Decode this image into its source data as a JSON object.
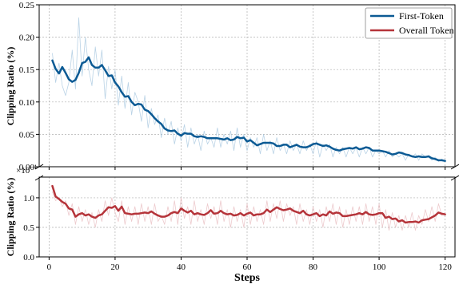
{
  "chart_data": [
    {
      "type": "line",
      "panel": "top",
      "ylabel": "Clipping Ratio (%)",
      "xlim": [
        -3,
        123
      ],
      "ylim": [
        0,
        0.25
      ],
      "yticks": [
        0.0,
        0.05,
        0.1,
        0.15,
        0.2,
        0.25
      ],
      "ytick_labels": [
        "0.00",
        "0.05",
        "0.10",
        "0.15",
        "0.20",
        "0.25"
      ],
      "grid": true,
      "legend_position": "top-right",
      "legend": [
        "First-Token",
        "Overall Token"
      ],
      "series": [
        {
          "name": "First-Token",
          "role": "smoothed",
          "color": "#0b5a94",
          "x": [
            1,
            2,
            3,
            4,
            5,
            6,
            7,
            8,
            9,
            10,
            11,
            12,
            13,
            14,
            15,
            16,
            17,
            18,
            19,
            20,
            21,
            22,
            23,
            24,
            25,
            26,
            27,
            28,
            29,
            30,
            31,
            32,
            33,
            34,
            35,
            36,
            37,
            38,
            39,
            40,
            41,
            42,
            43,
            44,
            45,
            46,
            47,
            48,
            49,
            50,
            51,
            52,
            53,
            54,
            55,
            56,
            57,
            58,
            59,
            60,
            61,
            62,
            63,
            64,
            65,
            66,
            67,
            68,
            69,
            70,
            71,
            72,
            73,
            74,
            75,
            76,
            77,
            78,
            79,
            80,
            81,
            82,
            83,
            84,
            85,
            86,
            87,
            88,
            89,
            90,
            91,
            92,
            93,
            94,
            95,
            96,
            97,
            98,
            99,
            100,
            101,
            102,
            103,
            104,
            105,
            106,
            107,
            108,
            109,
            110,
            111,
            112,
            113,
            114,
            115,
            116,
            117,
            118,
            119,
            120
          ],
          "y": [
            0.164,
            0.151,
            0.144,
            0.154,
            0.145,
            0.135,
            0.131,
            0.134,
            0.145,
            0.16,
            0.162,
            0.169,
            0.157,
            0.153,
            0.153,
            0.157,
            0.149,
            0.14,
            0.141,
            0.13,
            0.124,
            0.115,
            0.108,
            0.109,
            0.1,
            0.095,
            0.097,
            0.096,
            0.088,
            0.086,
            0.081,
            0.075,
            0.07,
            0.066,
            0.059,
            0.056,
            0.055,
            0.056,
            0.051,
            0.048,
            0.052,
            0.051,
            0.051,
            0.047,
            0.046,
            0.047,
            0.046,
            0.044,
            0.044,
            0.044,
            0.044,
            0.043,
            0.042,
            0.044,
            0.041,
            0.042,
            0.046,
            0.044,
            0.045,
            0.039,
            0.041,
            0.037,
            0.033,
            0.035,
            0.037,
            0.037,
            0.037,
            0.036,
            0.032,
            0.032,
            0.034,
            0.034,
            0.03,
            0.032,
            0.034,
            0.031,
            0.03,
            0.03,
            0.032,
            0.035,
            0.036,
            0.034,
            0.032,
            0.033,
            0.031,
            0.028,
            0.026,
            0.025,
            0.027,
            0.028,
            0.029,
            0.028,
            0.03,
            0.027,
            0.028,
            0.03,
            0.029,
            0.025,
            0.025,
            0.025,
            0.024,
            0.023,
            0.021,
            0.019,
            0.02,
            0.022,
            0.021,
            0.019,
            0.018,
            0.016,
            0.015,
            0.016,
            0.015,
            0.015,
            0.016,
            0.013,
            0.012,
            0.01,
            0.01,
            0.009
          ]
        },
        {
          "name": "First-Token (raw)",
          "role": "raw",
          "color": "#9cc0dc",
          "x": [
            1,
            2,
            3,
            4,
            5,
            6,
            7,
            8,
            9,
            10,
            11,
            12,
            13,
            14,
            15,
            16,
            17,
            18,
            19,
            20,
            21,
            22,
            23,
            24,
            25,
            26,
            27,
            28,
            29,
            30,
            31,
            32,
            33,
            34,
            35,
            36,
            37,
            38,
            39,
            40,
            41,
            42,
            43,
            44,
            45,
            46,
            47,
            48,
            49,
            50,
            51,
            52,
            53,
            54,
            55,
            56,
            57,
            58,
            59,
            60,
            61,
            62,
            63,
            64,
            65,
            66,
            67,
            68,
            69,
            70,
            71,
            72,
            73,
            74,
            75,
            76,
            77,
            78,
            79,
            80,
            81,
            82,
            83,
            84,
            85,
            86,
            87,
            88,
            89,
            90,
            91,
            92,
            93,
            94,
            95,
            96,
            97,
            98,
            99,
            100,
            101,
            102,
            103,
            104,
            105,
            106,
            107,
            108,
            109,
            110,
            111,
            112,
            113,
            114,
            115,
            116,
            117,
            118,
            119,
            120
          ],
          "y": [
            0.175,
            0.13,
            0.16,
            0.125,
            0.11,
            0.13,
            0.18,
            0.12,
            0.23,
            0.14,
            0.2,
            0.15,
            0.125,
            0.185,
            0.14,
            0.18,
            0.105,
            0.155,
            0.12,
            0.15,
            0.095,
            0.14,
            0.09,
            0.13,
            0.08,
            0.115,
            0.1,
            0.07,
            0.11,
            0.06,
            0.09,
            0.065,
            0.08,
            0.045,
            0.075,
            0.05,
            0.07,
            0.035,
            0.06,
            0.04,
            0.065,
            0.03,
            0.06,
            0.035,
            0.05,
            0.025,
            0.055,
            0.035,
            0.045,
            0.03,
            0.06,
            0.03,
            0.05,
            0.035,
            0.055,
            0.025,
            0.06,
            0.03,
            0.05,
            0.025,
            0.045,
            0.03,
            0.045,
            0.02,
            0.05,
            0.025,
            0.04,
            0.02,
            0.045,
            0.025,
            0.035,
            0.02,
            0.04,
            0.025,
            0.035,
            0.02,
            0.04,
            0.025,
            0.035,
            0.02,
            0.04,
            0.015,
            0.035,
            0.025,
            0.035,
            0.015,
            0.03,
            0.02,
            0.03,
            0.015,
            0.03,
            0.02,
            0.03,
            0.015,
            0.03,
            0.02,
            0.03,
            0.015,
            0.025,
            0.02,
            0.025,
            0.015,
            0.025,
            0.015,
            0.02,
            0.015,
            0.02,
            0.01,
            0.02,
            0.015,
            0.02,
            0.01,
            0.02,
            0.015,
            0.015,
            0.01,
            0.015,
            0.008,
            0.012,
            0.008
          ]
        }
      ]
    },
    {
      "type": "line",
      "panel": "bottom",
      "ylabel": "Clipping Ratio (%)",
      "xlabel": "Steps",
      "xlim": [
        -3,
        123
      ],
      "xticks": [
        0,
        20,
        40,
        60,
        80,
        100,
        120
      ],
      "xtick_labels": [
        "0",
        "20",
        "40",
        "60",
        "80",
        "100",
        "120"
      ],
      "ylim": [
        0,
        1.35
      ],
      "yticks": [
        0.0,
        0.5,
        1.0
      ],
      "ytick_labels": [
        "0.0",
        "0.5",
        "1.0"
      ],
      "y_multiplier_label": "×10",
      "y_multiplier_exponent": "−4",
      "grid": true,
      "series": [
        {
          "name": "Overall Token",
          "role": "smoothed",
          "color": "#b5343a",
          "x": [
            1,
            2,
            3,
            4,
            5,
            6,
            7,
            8,
            9,
            10,
            11,
            12,
            13,
            14,
            15,
            16,
            17,
            18,
            19,
            20,
            21,
            22,
            23,
            24,
            25,
            26,
            27,
            28,
            29,
            30,
            31,
            32,
            33,
            34,
            35,
            36,
            37,
            38,
            39,
            40,
            41,
            42,
            43,
            44,
            45,
            46,
            47,
            48,
            49,
            50,
            51,
            52,
            53,
            54,
            55,
            56,
            57,
            58,
            59,
            60,
            61,
            62,
            63,
            64,
            65,
            66,
            67,
            68,
            69,
            70,
            71,
            72,
            73,
            74,
            75,
            76,
            77,
            78,
            79,
            80,
            81,
            82,
            83,
            84,
            85,
            86,
            87,
            88,
            89,
            90,
            91,
            92,
            93,
            94,
            95,
            96,
            97,
            98,
            99,
            100,
            101,
            102,
            103,
            104,
            105,
            106,
            107,
            108,
            109,
            110,
            111,
            112,
            113,
            114,
            115,
            116,
            117,
            118,
            119,
            120
          ],
          "y": [
            1.2,
            1.02,
            0.98,
            0.93,
            0.9,
            0.82,
            0.8,
            0.68,
            0.72,
            0.74,
            0.7,
            0.72,
            0.68,
            0.66,
            0.7,
            0.72,
            0.78,
            0.84,
            0.83,
            0.86,
            0.78,
            0.85,
            0.74,
            0.73,
            0.72,
            0.73,
            0.73,
            0.74,
            0.75,
            0.74,
            0.77,
            0.73,
            0.7,
            0.68,
            0.68,
            0.7,
            0.74,
            0.76,
            0.74,
            0.82,
            0.78,
            0.75,
            0.78,
            0.72,
            0.74,
            0.72,
            0.71,
            0.74,
            0.79,
            0.73,
            0.74,
            0.78,
            0.74,
            0.72,
            0.73,
            0.7,
            0.71,
            0.74,
            0.7,
            0.73,
            0.75,
            0.7,
            0.72,
            0.72,
            0.74,
            0.8,
            0.76,
            0.8,
            0.84,
            0.81,
            0.79,
            0.8,
            0.82,
            0.78,
            0.76,
            0.74,
            0.78,
            0.72,
            0.7,
            0.72,
            0.74,
            0.69,
            0.72,
            0.7,
            0.77,
            0.73,
            0.75,
            0.74,
            0.69,
            0.69,
            0.7,
            0.71,
            0.72,
            0.74,
            0.72,
            0.76,
            0.72,
            0.71,
            0.72,
            0.74,
            0.74,
            0.66,
            0.68,
            0.64,
            0.65,
            0.6,
            0.62,
            0.58,
            0.59,
            0.59,
            0.6,
            0.58,
            0.62,
            0.63,
            0.64,
            0.67,
            0.7,
            0.75,
            0.73,
            0.72
          ]
        },
        {
          "name": "Overall Token (raw)",
          "role": "raw",
          "color": "#e6b3b8",
          "x": [
            1,
            2,
            3,
            4,
            5,
            6,
            7,
            8,
            9,
            10,
            11,
            12,
            13,
            14,
            15,
            16,
            17,
            18,
            19,
            20,
            21,
            22,
            23,
            24,
            25,
            26,
            27,
            28,
            29,
            30,
            31,
            32,
            33,
            34,
            35,
            36,
            37,
            38,
            39,
            40,
            41,
            42,
            43,
            44,
            45,
            46,
            47,
            48,
            49,
            50,
            51,
            52,
            53,
            54,
            55,
            56,
            57,
            58,
            59,
            60,
            61,
            62,
            63,
            64,
            65,
            66,
            67,
            68,
            69,
            70,
            71,
            72,
            73,
            74,
            75,
            76,
            77,
            78,
            79,
            80,
            81,
            82,
            83,
            84,
            85,
            86,
            87,
            88,
            89,
            90,
            91,
            92,
            93,
            94,
            95,
            96,
            97,
            98,
            99,
            100,
            101,
            102,
            103,
            104,
            105,
            106,
            107,
            108,
            109,
            110,
            111,
            112,
            113,
            114,
            115,
            116,
            117,
            118,
            119,
            120
          ],
          "y": [
            1.1,
            0.95,
            1.0,
            0.85,
            0.95,
            0.7,
            0.9,
            0.55,
            0.85,
            0.6,
            0.8,
            0.55,
            0.75,
            0.5,
            0.8,
            0.6,
            0.95,
            0.7,
            1.0,
            0.75,
            0.6,
            0.95,
            0.55,
            0.85,
            0.6,
            0.85,
            0.55,
            0.9,
            0.6,
            0.85,
            0.55,
            0.9,
            0.6,
            0.7,
            0.55,
            0.85,
            0.6,
            0.95,
            0.55,
            1.0,
            0.65,
            0.85,
            0.55,
            0.95,
            0.6,
            0.8,
            0.55,
            0.9,
            0.65,
            0.85,
            0.55,
            0.95,
            0.6,
            0.8,
            0.5,
            0.85,
            0.6,
            0.8,
            0.5,
            0.9,
            0.55,
            0.85,
            0.6,
            0.8,
            0.55,
            0.95,
            0.6,
            0.9,
            0.65,
            0.95,
            0.6,
            0.9,
            0.7,
            0.85,
            0.55,
            0.9,
            0.6,
            0.8,
            0.55,
            0.85,
            0.6,
            0.8,
            0.5,
            0.85,
            0.6,
            0.9,
            0.55,
            0.85,
            0.5,
            0.8,
            0.55,
            0.85,
            0.6,
            0.85,
            0.55,
            0.9,
            0.6,
            0.85,
            0.55,
            0.9,
            0.5,
            0.8,
            0.45,
            0.75,
            0.5,
            0.7,
            0.45,
            0.7,
            0.5,
            0.75,
            0.45,
            0.7,
            0.55,
            0.8,
            0.6,
            0.85,
            0.6,
            0.9,
            0.7,
            0.75
          ]
        }
      ]
    }
  ]
}
